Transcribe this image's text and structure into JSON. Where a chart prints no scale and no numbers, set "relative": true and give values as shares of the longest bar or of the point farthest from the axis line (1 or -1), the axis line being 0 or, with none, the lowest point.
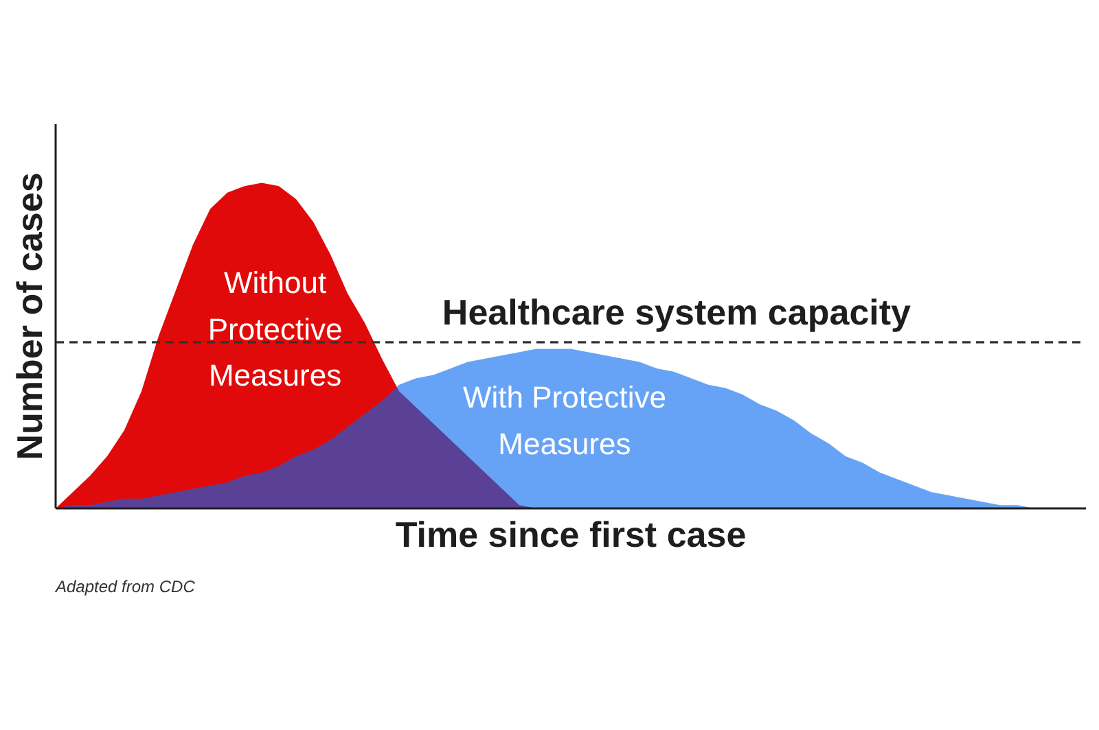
{
  "chart_data": {
    "type": "area",
    "relative": true,
    "xlabel": "Time since first case",
    "ylabel": "Number of cases",
    "categories": [
      null,
      null,
      null,
      null,
      null,
      null,
      null,
      null,
      null,
      null,
      null,
      null,
      null,
      null,
      null,
      null,
      null,
      null,
      null,
      null,
      null,
      null,
      null,
      null,
      null,
      null,
      null,
      null,
      null,
      null,
      null,
      null,
      null,
      null,
      null,
      null,
      null,
      null,
      null,
      null,
      null,
      null,
      null,
      null,
      null,
      null,
      null,
      null,
      null,
      null,
      null,
      null,
      null,
      null,
      null,
      null,
      null,
      null,
      null
    ],
    "series": [
      {
        "name": "Without Protective Measures",
        "color": "#e10a0a",
        "values": [
          0,
          0.05,
          0.1,
          0.16,
          0.24,
          0.36,
          0.53,
          0.67,
          0.81,
          0.92,
          0.97,
          0.99,
          1.0,
          0.99,
          0.95,
          0.88,
          0.78,
          0.66,
          0.57,
          0.46,
          0.36,
          0.31,
          0.26,
          0.21,
          0.16,
          0.11,
          0.06,
          0.01,
          0,
          null,
          null,
          null,
          null,
          null,
          null,
          null,
          null,
          null,
          null,
          null,
          null,
          null,
          null,
          null,
          null,
          null,
          null,
          null,
          null,
          null,
          null,
          null,
          null,
          null,
          null,
          null,
          null,
          null,
          null
        ]
      },
      {
        "name": "With Protective Measures",
        "color": "#5ba3f7",
        "values": [
          0,
          0.01,
          0.01,
          0.02,
          0.03,
          0.03,
          0.04,
          0.05,
          0.06,
          0.07,
          0.08,
          0.1,
          0.11,
          0.13,
          0.16,
          0.18,
          0.21,
          0.25,
          0.29,
          0.33,
          0.38,
          0.4,
          0.41,
          0.43,
          0.45,
          0.46,
          0.47,
          0.48,
          0.49,
          0.49,
          0.49,
          0.48,
          0.47,
          0.46,
          0.45,
          0.43,
          0.42,
          0.4,
          0.38,
          0.37,
          0.35,
          0.32,
          0.3,
          0.27,
          0.23,
          0.2,
          0.16,
          0.14,
          0.11,
          0.09,
          0.07,
          0.05,
          0.04,
          0.03,
          0.02,
          0.01,
          0.01,
          0,
          0
        ]
      }
    ],
    "ref_lines": [
      {
        "axis": "y",
        "value": 0.51,
        "label": "Healthcare system capacity",
        "line_style": "dashed",
        "color": "#333333"
      }
    ],
    "annotations": [
      "Adapted from CDC"
    ]
  }
}
